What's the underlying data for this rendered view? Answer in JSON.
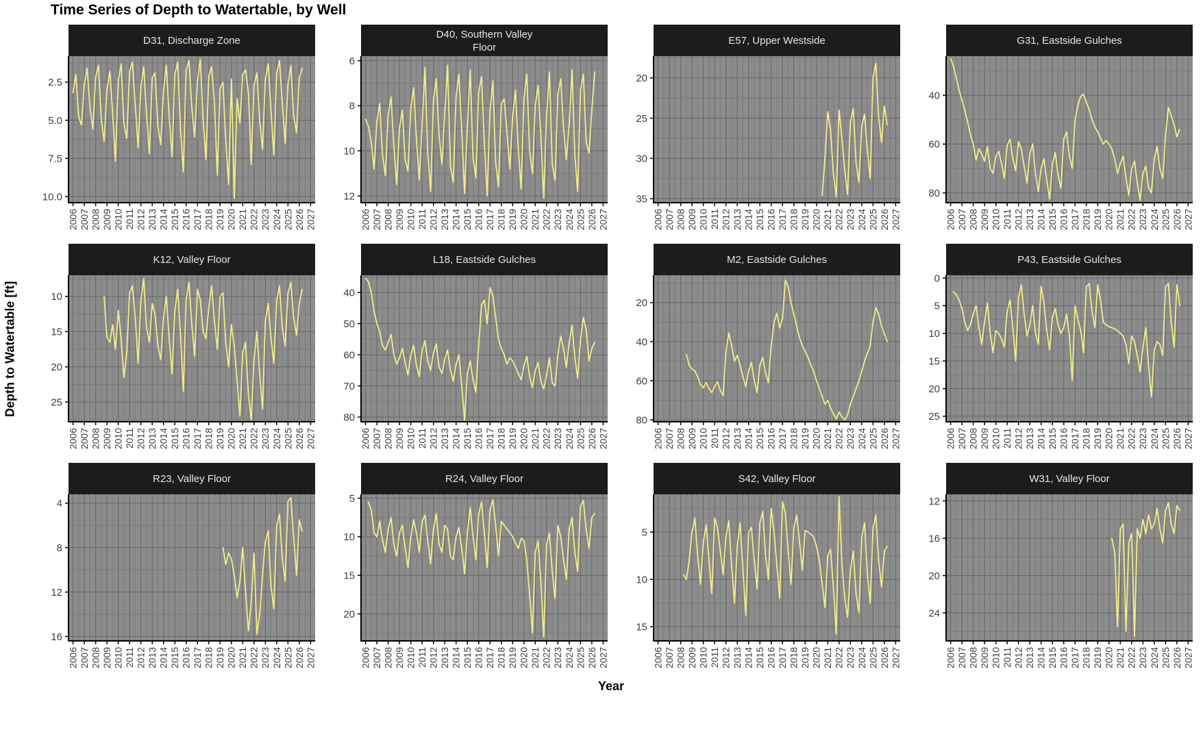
{
  "title": "Time Series of Depth to Watertable, by Well",
  "x_axis_title": "Year",
  "y_axis_title": "Depth to Watertable [ft]",
  "colors": {
    "line": "#f3ee8a",
    "panel_bg": "#8c8c8c",
    "grid_major": "#666666",
    "grid_minor": "#7a7a7a",
    "strip_bg": "#1c1c1c",
    "strip_text": "#e6e6e6",
    "axis_line": "#000000",
    "tick_label": "#3d3d3d"
  },
  "chart_data": {
    "type": "line",
    "x_unit": "year",
    "x_domain": [
      2005.6,
      2027.4
    ],
    "x_ticks": [
      2006,
      2007,
      2008,
      2009,
      2010,
      2011,
      2012,
      2013,
      2014,
      2015,
      2016,
      2017,
      2018,
      2019,
      2020,
      2021,
      2022,
      2023,
      2024,
      2025,
      2026,
      2027
    ],
    "x_tick_labels": [
      "2006",
      "2007",
      "2008",
      "2009",
      "2010",
      "2011",
      "2012",
      "2013",
      "2014",
      "2015",
      "2016",
      "2017",
      "2018",
      "2019",
      "2020",
      "2021",
      "2022",
      "2023",
      "2024",
      "2025",
      "2026",
      "2027"
    ],
    "y_axis_reversed": true,
    "facets": [
      {
        "well": "D31",
        "region": "Discharge Zone",
        "strip_lines": [
          "D31, Discharge Zone"
        ],
        "y_ticks": [
          2.5,
          5.0,
          7.5,
          10.0
        ],
        "y_tick_labels": [
          "2.5",
          "5.0",
          "7.5",
          "10.0"
        ],
        "y_domain": [
          0.8,
          10.4
        ],
        "start": 2006.0,
        "step": 0.25,
        "values": [
          3.2,
          2.0,
          4.8,
          5.3,
          2.6,
          1.6,
          4.2,
          5.6,
          2.2,
          1.4,
          5.0,
          6.4,
          3.0,
          1.8,
          4.5,
          7.7,
          2.4,
          1.3,
          5.2,
          6.2,
          1.8,
          1.2,
          4.0,
          6.8,
          2.8,
          1.5,
          4.6,
          7.2,
          2.2,
          1.9,
          5.4,
          6.6,
          3.1,
          1.4,
          4.8,
          7.4,
          2.0,
          1.2,
          5.6,
          8.4,
          1.7,
          1.1,
          4.2,
          6.1,
          2.4,
          1.0,
          5.0,
          7.6,
          2.1,
          1.5,
          3.8,
          8.6,
          2.9,
          2.5,
          6.3,
          9.2,
          2.3,
          10.1,
          3.6,
          5.2,
          2.0,
          1.7,
          3.2,
          7.9,
          2.7,
          1.9,
          5.1,
          6.9,
          2.3,
          1.3,
          4.4,
          7.3,
          1.9,
          1.1,
          3.9,
          6.5,
          2.6,
          1.4,
          4.7,
          5.8,
          2.2,
          1.6
        ]
      },
      {
        "well": "D40",
        "region": "Southern Valley Floor",
        "strip_lines": [
          "D40, Southern Valley",
          "Floor"
        ],
        "y_ticks": [
          6,
          8,
          10,
          12
        ],
        "y_tick_labels": [
          "6",
          "8",
          "10",
          "12"
        ],
        "y_domain": [
          5.8,
          12.3
        ],
        "start": 2006.0,
        "step": 0.25,
        "values": [
          8.6,
          8.9,
          9.6,
          10.8,
          8.7,
          7.9,
          10.2,
          11.1,
          8.4,
          7.6,
          9.8,
          11.5,
          9.0,
          8.2,
          10.4,
          10.9,
          8.1,
          7.2,
          9.5,
          11.3,
          8.8,
          6.3,
          10.1,
          11.8,
          7.8,
          6.8,
          9.3,
          10.6,
          8.3,
          6.2,
          10.7,
          11.4,
          7.6,
          6.6,
          9.1,
          11.9,
          8.9,
          6.4,
          10.3,
          11.2,
          7.4,
          6.7,
          9.7,
          12.0,
          8.2,
          6.9,
          10.5,
          11.6,
          7.9,
          7.7,
          9.2,
          10.8,
          8.5,
          7.3,
          9.9,
          11.7,
          7.7,
          6.6,
          10.0,
          11.0,
          8.0,
          7.1,
          9.4,
          12.1,
          8.4,
          6.5,
          10.6,
          11.3,
          7.5,
          6.8,
          9.0,
          10.4,
          8.8,
          6.4,
          10.2,
          11.8,
          7.3,
          6.6,
          9.6,
          10.1,
          8.2,
          6.5
        ]
      },
      {
        "well": "E57",
        "region": "Upper Westside",
        "strip_lines": [
          "E57, Upper Westside"
        ],
        "y_ticks": [
          20,
          25,
          30,
          35
        ],
        "y_tick_labels": [
          "20",
          "25",
          "30",
          "35"
        ],
        "y_domain": [
          17.3,
          35.5
        ],
        "start": 2020.5,
        "step": 0.25,
        "values": [
          34.6,
          30.0,
          24.2,
          26.5,
          32.0,
          34.8,
          24.0,
          27.5,
          31.5,
          34.5,
          25.5,
          23.8,
          30.5,
          33.0,
          26.0,
          24.5,
          29.0,
          32.5,
          20.0,
          18.2,
          25.0,
          28.0,
          23.5,
          25.8
        ]
      },
      {
        "well": "G31",
        "region": "Eastside Gulches",
        "strip_lines": [
          "G31, Eastside Gulches"
        ],
        "y_ticks": [
          40,
          60,
          80
        ],
        "y_tick_labels": [
          "40",
          "60",
          "80"
        ],
        "y_domain": [
          24,
          84
        ],
        "start": 2006.0,
        "step": 0.25,
        "values": [
          25.0,
          28.0,
          33.0,
          38.0,
          42.0,
          46.0,
          51.0,
          56.0,
          60.0,
          66.5,
          62.0,
          64.0,
          67.0,
          61.0,
          70.0,
          72.0,
          65.0,
          63.0,
          68.0,
          74.0,
          60.5,
          58.0,
          66.0,
          71.0,
          59.0,
          62.0,
          69.0,
          76.0,
          64.0,
          60.0,
          72.0,
          79.5,
          70.0,
          66.0,
          75.0,
          82.5,
          68.0,
          63.5,
          73.0,
          78.0,
          58.0,
          55.0,
          65.0,
          70.0,
          50.0,
          44.0,
          40.5,
          39.5,
          43.0,
          46.0,
          50.0,
          53.0,
          55.0,
          57.5,
          60.0,
          58.5,
          60.0,
          62.0,
          66.0,
          72.0,
          68.0,
          65.0,
          74.0,
          81.0,
          70.0,
          67.0,
          76.0,
          83.0,
          72.0,
          69.0,
          78.0,
          80.0,
          66.0,
          61.0,
          70.0,
          74.0,
          56.0,
          45.0,
          48.5,
          52.0,
          57.0,
          54.0
        ]
      },
      {
        "well": "K12",
        "region": "Valley Floor",
        "strip_lines": [
          "K12, Valley Floor"
        ],
        "y_ticks": [
          10,
          15,
          20,
          25
        ],
        "y_tick_labels": [
          "10",
          "15",
          "20",
          "25"
        ],
        "y_domain": [
          7.0,
          27.8
        ],
        "start": 2008.75,
        "step": 0.25,
        "values": [
          10.0,
          15.8,
          16.5,
          14.0,
          17.5,
          12.0,
          16.0,
          21.5,
          18.0,
          9.5,
          8.5,
          13.0,
          19.5,
          10.5,
          7.5,
          14.5,
          16.5,
          11.0,
          12.5,
          17.0,
          19.0,
          13.0,
          10.0,
          16.0,
          21.0,
          12.0,
          9.0,
          15.5,
          23.5,
          10.5,
          8.0,
          14.0,
          18.5,
          9.0,
          10.5,
          15.0,
          16.0,
          11.5,
          8.5,
          13.5,
          17.5,
          10.0,
          9.5,
          16.5,
          20.0,
          14.0,
          17.0,
          22.0,
          27.0,
          18.0,
          16.5,
          24.0,
          27.5,
          19.0,
          15.0,
          21.0,
          26.0,
          13.5,
          11.0,
          16.0,
          19.5,
          10.5,
          8.5,
          14.5,
          17.0,
          9.5,
          8.0,
          13.0,
          15.5,
          11.0,
          9.0
        ]
      },
      {
        "well": "L18",
        "region": "Eastside Gulches",
        "strip_lines": [
          "L18, Eastside Gulches"
        ],
        "y_ticks": [
          40,
          50,
          60,
          70,
          80
        ],
        "y_tick_labels": [
          "40",
          "50",
          "60",
          "70",
          "80"
        ],
        "y_domain": [
          34.5,
          81.5
        ],
        "start": 2006.0,
        "step": 0.25,
        "values": [
          35.5,
          36.5,
          40.0,
          46.0,
          50.0,
          52.5,
          57.0,
          58.5,
          56.0,
          53.5,
          60.0,
          63.0,
          61.0,
          58.0,
          62.5,
          66.5,
          60.0,
          57.0,
          63.5,
          67.0,
          58.5,
          55.5,
          62.0,
          65.0,
          59.5,
          56.5,
          64.0,
          66.0,
          61.5,
          58.5,
          65.0,
          68.5,
          63.0,
          60.0,
          70.0,
          81.0,
          66.0,
          62.0,
          68.0,
          72.0,
          57.0,
          44.0,
          42.5,
          50.0,
          38.5,
          41.0,
          48.0,
          55.0,
          58.0,
          60.0,
          63.0,
          61.0,
          62.0,
          64.0,
          66.0,
          68.0,
          63.5,
          60.5,
          67.0,
          70.5,
          65.0,
          62.5,
          68.5,
          71.0,
          66.5,
          61.0,
          69.0,
          70.0,
          60.0,
          54.0,
          58.0,
          64.0,
          56.0,
          50.5,
          61.0,
          67.5,
          55.0,
          48.0,
          52.0,
          62.0,
          58.0,
          56.0
        ]
      },
      {
        "well": "M2",
        "region": "Eastside Gulches",
        "strip_lines": [
          "M2, Eastside Gulches"
        ],
        "y_ticks": [
          20,
          40,
          60,
          80
        ],
        "y_tick_labels": [
          "20",
          "40",
          "60",
          "80"
        ],
        "y_domain": [
          6.0,
          81.0
        ],
        "start": 2008.5,
        "step": 0.25,
        "values": [
          46.5,
          52.0,
          54.0,
          55.0,
          58.0,
          62.0,
          63.5,
          61.0,
          64.0,
          66.0,
          63.0,
          60.5,
          65.0,
          67.5,
          45.0,
          35.5,
          42.0,
          50.0,
          47.0,
          52.0,
          58.0,
          63.0,
          55.0,
          50.5,
          60.0,
          66.0,
          52.0,
          48.0,
          56.0,
          61.0,
          42.0,
          30.0,
          25.5,
          33.0,
          28.0,
          8.5,
          12.0,
          20.0,
          26.0,
          32.0,
          38.0,
          42.0,
          45.0,
          48.0,
          52.0,
          55.0,
          60.0,
          64.0,
          68.0,
          72.0,
          70.0,
          74.0,
          77.0,
          79.5,
          76.0,
          78.5,
          80.0,
          77.5,
          72.0,
          68.0,
          64.0,
          60.0,
          55.0,
          50.0,
          46.0,
          42.0,
          30.0,
          22.5,
          26.0,
          32.0,
          36.0,
          40.0
        ]
      },
      {
        "well": "P43",
        "region": "Eastside Gulches",
        "strip_lines": [
          "P43, Eastside Gulches"
        ],
        "y_ticks": [
          0,
          5,
          10,
          15,
          20,
          25
        ],
        "y_tick_labels": [
          "0",
          "5",
          "10",
          "15",
          "20",
          "25"
        ],
        "y_domain": [
          -0.5,
          26.0
        ],
        "start": 2006.25,
        "step": 0.25,
        "values": [
          2.5,
          3.0,
          4.0,
          5.5,
          8.0,
          9.5,
          8.5,
          6.5,
          5.0,
          9.0,
          12.0,
          8.0,
          4.5,
          10.0,
          13.5,
          9.5,
          10.0,
          11.0,
          12.5,
          6.0,
          4.0,
          9.0,
          15.0,
          3.5,
          1.2,
          6.5,
          10.5,
          8.5,
          5.0,
          10.0,
          12.0,
          1.5,
          4.5,
          9.5,
          13.0,
          7.0,
          5.5,
          8.5,
          10.0,
          9.0,
          6.5,
          10.5,
          18.5,
          5.0,
          7.5,
          9.5,
          13.5,
          1.5,
          1.0,
          6.0,
          9.0,
          1.2,
          4.0,
          8.0,
          8.5,
          8.8,
          9.0,
          9.2,
          9.5,
          10.0,
          10.5,
          12.0,
          15.5,
          10.5,
          11.5,
          14.0,
          17.0,
          12.5,
          9.0,
          16.0,
          21.5,
          13.0,
          11.5,
          12.0,
          14.0,
          1.5,
          1.0,
          8.0,
          12.5,
          1.2,
          5.0
        ]
      },
      {
        "well": "R23",
        "region": "Valley Floor",
        "strip_lines": [
          "R23, Valley Floor"
        ],
        "y_ticks": [
          4,
          8,
          12,
          16
        ],
        "y_tick_labels": [
          "4",
          "8",
          "12",
          "16"
        ],
        "y_domain": [
          3.2,
          16.4
        ],
        "start": 2019.25,
        "step": 0.25,
        "values": [
          8.0,
          9.5,
          8.5,
          9.0,
          10.5,
          12.5,
          11.0,
          8.0,
          12.0,
          15.5,
          13.0,
          8.5,
          15.8,
          14.0,
          10.5,
          7.5,
          6.5,
          11.5,
          13.5,
          6.0,
          5.0,
          9.0,
          11.0,
          3.8,
          3.5,
          7.0,
          10.5,
          5.5,
          6.5
        ]
      },
      {
        "well": "R24",
        "region": "Valley Floor",
        "strip_lines": [
          "R24, Valley Floor"
        ],
        "y_ticks": [
          5,
          10,
          15,
          20
        ],
        "y_tick_labels": [
          "5",
          "10",
          "15",
          "20"
        ],
        "y_domain": [
          4.5,
          23.5
        ],
        "start": 2006.25,
        "step": 0.25,
        "values": [
          5.5,
          6.5,
          9.5,
          10.0,
          8.0,
          10.5,
          12.0,
          9.0,
          7.5,
          11.0,
          12.5,
          9.5,
          8.5,
          11.5,
          14.0,
          10.0,
          7.8,
          9.5,
          12.0,
          8.0,
          7.2,
          10.5,
          13.5,
          9.0,
          7.0,
          11.0,
          12.0,
          8.5,
          9.0,
          12.5,
          13.0,
          10.0,
          8.8,
          11.5,
          14.8,
          9.5,
          6.2,
          10.0,
          13.0,
          7.0,
          5.5,
          9.5,
          14.0,
          6.5,
          5.2,
          8.5,
          12.5,
          8.0,
          8.5,
          9.0,
          9.5,
          10.0,
          10.8,
          11.5,
          10.2,
          10.5,
          13.0,
          17.5,
          22.5,
          12.0,
          10.5,
          16.0,
          23.0,
          11.0,
          9.5,
          14.5,
          18.0,
          8.5,
          10.0,
          13.0,
          15.5,
          9.0,
          7.5,
          12.0,
          14.5,
          6.0,
          5.3,
          9.0,
          11.5,
          7.5,
          7.0
        ]
      },
      {
        "well": "S42",
        "region": "Valley Floor",
        "strip_lines": [
          "S42, Valley Floor"
        ],
        "y_ticks": [
          5,
          10,
          15
        ],
        "y_tick_labels": [
          "5",
          "10",
          "15"
        ],
        "y_domain": [
          1.0,
          16.5
        ],
        "start": 2008.25,
        "step": 0.25,
        "values": [
          9.5,
          10.0,
          8.0,
          5.0,
          3.5,
          7.5,
          10.5,
          6.0,
          4.2,
          8.0,
          11.5,
          3.5,
          4.5,
          7.0,
          9.5,
          5.5,
          3.8,
          8.5,
          12.5,
          6.5,
          4.0,
          9.0,
          13.8,
          5.0,
          4.5,
          8.0,
          11.0,
          4.0,
          2.8,
          7.5,
          10.0,
          2.5,
          5.0,
          8.5,
          12.0,
          1.8,
          3.0,
          7.0,
          10.5,
          4.5,
          3.2,
          6.0,
          9.0,
          4.8,
          5.0,
          5.2,
          5.5,
          6.5,
          8.0,
          10.5,
          13.0,
          7.5,
          6.8,
          11.0,
          15.8,
          1.2,
          8.5,
          12.0,
          14.0,
          9.0,
          7.0,
          11.5,
          13.5,
          5.5,
          4.0,
          9.5,
          12.5,
          4.5,
          3.2,
          8.0,
          10.8,
          7.0,
          6.5
        ]
      },
      {
        "well": "W31",
        "region": "Valley Floor",
        "strip_lines": [
          "W31, Valley Floor"
        ],
        "y_ticks": [
          12,
          16,
          20,
          24
        ],
        "y_tick_labels": [
          "12",
          "16",
          "20",
          "24"
        ],
        "y_domain": [
          11.3,
          27.0
        ],
        "start": 2020.25,
        "step": 0.25,
        "values": [
          16.0,
          17.5,
          25.5,
          15.0,
          14.5,
          26.0,
          16.5,
          15.5,
          26.5,
          15.0,
          16.0,
          14.0,
          15.5,
          13.5,
          15.0,
          14.5,
          12.8,
          15.0,
          16.5,
          13.0,
          12.2,
          14.5,
          15.5,
          12.5,
          13.0
        ]
      }
    ]
  }
}
